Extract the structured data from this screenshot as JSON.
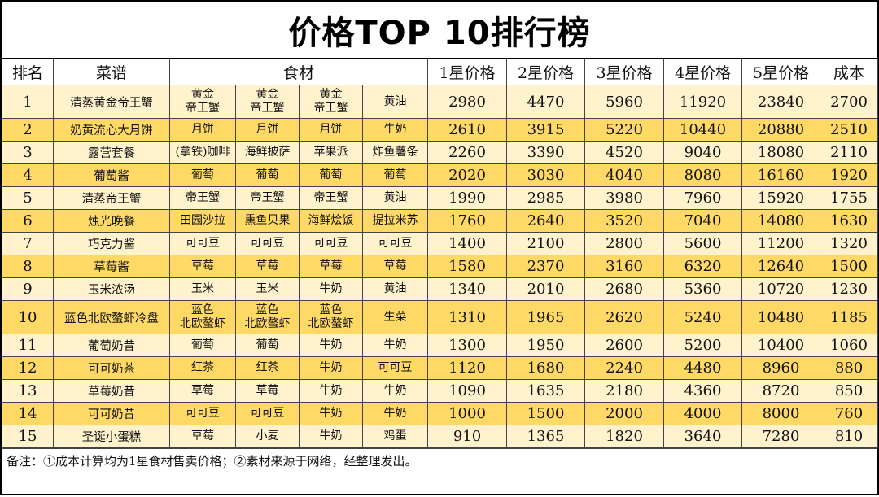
{
  "title": "价格TOP 10排行榜",
  "headers": {
    "rank": "排名",
    "dish": "菜谱",
    "ingredients": "食材",
    "star1": "1星价格",
    "star2": "2星价格",
    "star3": "3星价格",
    "star4": "4星价格",
    "star5": "5星价格",
    "cost": "成本"
  },
  "colors": {
    "row_light": "#fff2cc",
    "row_dark": "#ffd966"
  },
  "rows": [
    {
      "rank": "1",
      "dish": "清蒸黄金帝王蟹",
      "ing": [
        "黄金\n帝王蟹",
        "黄金\n帝王蟹",
        "黄金\n帝王蟹",
        "黄油"
      ],
      "p1": "2980",
      "p2": "4470",
      "p3": "5960",
      "p4": "11920",
      "p5": "23840",
      "cost": "2700"
    },
    {
      "rank": "2",
      "dish": "奶黄流心大月饼",
      "ing": [
        "月饼",
        "月饼",
        "月饼",
        "牛奶"
      ],
      "p1": "2610",
      "p2": "3915",
      "p3": "5220",
      "p4": "10440",
      "p5": "20880",
      "cost": "2510"
    },
    {
      "rank": "3",
      "dish": "露营套餐",
      "ing": [
        "(拿铁)咖啡",
        "海鲜披萨",
        "苹果派",
        "炸鱼薯条"
      ],
      "p1": "2260",
      "p2": "3390",
      "p3": "4520",
      "p4": "9040",
      "p5": "18080",
      "cost": "2110"
    },
    {
      "rank": "4",
      "dish": "葡萄酱",
      "ing": [
        "葡萄",
        "葡萄",
        "葡萄",
        "葡萄"
      ],
      "p1": "2020",
      "p2": "3030",
      "p3": "4040",
      "p4": "8080",
      "p5": "16160",
      "cost": "1920"
    },
    {
      "rank": "5",
      "dish": "清蒸帝王蟹",
      "ing": [
        "帝王蟹",
        "帝王蟹",
        "帝王蟹",
        "黄油"
      ],
      "p1": "1990",
      "p2": "2985",
      "p3": "3980",
      "p4": "7960",
      "p5": "15920",
      "cost": "1755"
    },
    {
      "rank": "6",
      "dish": "烛光晚餐",
      "ing": [
        "田园沙拉",
        "熏鱼贝果",
        "海鲜烩饭",
        "提拉米苏"
      ],
      "p1": "1760",
      "p2": "2640",
      "p3": "3520",
      "p4": "7040",
      "p5": "14080",
      "cost": "1630"
    },
    {
      "rank": "7",
      "dish": "巧克力酱",
      "ing": [
        "可可豆",
        "可可豆",
        "可可豆",
        "可可豆"
      ],
      "p1": "1400",
      "p2": "2100",
      "p3": "2800",
      "p4": "5600",
      "p5": "11200",
      "cost": "1320"
    },
    {
      "rank": "8",
      "dish": "草莓酱",
      "ing": [
        "草莓",
        "草莓",
        "草莓",
        "草莓"
      ],
      "p1": "1580",
      "p2": "2370",
      "p3": "3160",
      "p4": "6320",
      "p5": "12640",
      "cost": "1500"
    },
    {
      "rank": "9",
      "dish": "玉米浓汤",
      "ing": [
        "玉米",
        "玉米",
        "牛奶",
        "黄油"
      ],
      "p1": "1340",
      "p2": "2010",
      "p3": "2680",
      "p4": "5360",
      "p5": "10720",
      "cost": "1230"
    },
    {
      "rank": "10",
      "dish": "蓝色北欧螯虾冷盘",
      "ing": [
        "蓝色\n北欧螯虾",
        "蓝色\n北欧螯虾",
        "蓝色\n北欧螯虾",
        "生菜"
      ],
      "p1": "1310",
      "p2": "1965",
      "p3": "2620",
      "p4": "5240",
      "p5": "10480",
      "cost": "1185"
    },
    {
      "rank": "11",
      "dish": "葡萄奶昔",
      "ing": [
        "葡萄",
        "葡萄",
        "牛奶",
        "牛奶"
      ],
      "p1": "1300",
      "p2": "1950",
      "p3": "2600",
      "p4": "5200",
      "p5": "10400",
      "cost": "1060"
    },
    {
      "rank": "12",
      "dish": "可可奶茶",
      "ing": [
        "红茶",
        "红茶",
        "牛奶",
        "可可豆"
      ],
      "p1": "1120",
      "p2": "1680",
      "p3": "2240",
      "p4": "4480",
      "p5": "8960",
      "cost": "880"
    },
    {
      "rank": "13",
      "dish": "草莓奶昔",
      "ing": [
        "草莓",
        "草莓",
        "牛奶",
        "牛奶"
      ],
      "p1": "1090",
      "p2": "1635",
      "p3": "2180",
      "p4": "4360",
      "p5": "8720",
      "cost": "850"
    },
    {
      "rank": "14",
      "dish": "可可奶昔",
      "ing": [
        "可可豆",
        "可可豆",
        "牛奶",
        "牛奶"
      ],
      "p1": "1000",
      "p2": "1500",
      "p3": "2000",
      "p4": "4000",
      "p5": "8000",
      "cost": "760"
    },
    {
      "rank": "15",
      "dish": "圣诞小蛋糕",
      "ing": [
        "草莓",
        "小麦",
        "牛奶",
        "鸡蛋"
      ],
      "p1": "910",
      "p2": "1365",
      "p3": "1820",
      "p4": "3640",
      "p5": "7280",
      "cost": "810"
    }
  ],
  "note": "备注：①成本计算均为1星食材售卖价格；②素材来源于网络，经整理发出。"
}
